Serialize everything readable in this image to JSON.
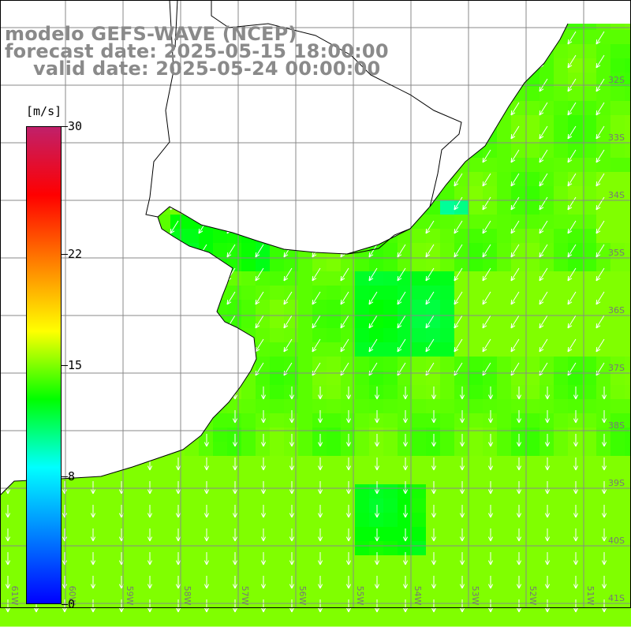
{
  "title": {
    "line1": "modelo GEFS-WAVE (NCEP)",
    "line2": "forecast date: 2025-05-15 18:00:00",
    "line3": "valid date: 2025-05-24 00:00:00"
  },
  "colorbar": {
    "unit": "[m/s]",
    "min": 0,
    "max": 30,
    "ticks": [
      {
        "value": 30,
        "label": "30"
      },
      {
        "value": 22,
        "label": "22"
      },
      {
        "value": 15,
        "label": "15"
      },
      {
        "value": 8,
        "label": "8"
      },
      {
        "value": 0,
        "label": "0"
      }
    ],
    "colors": [
      "#0000ff",
      "#0080ff",
      "#00ffff",
      "#00ff00",
      "#ffff00",
      "#ff8000",
      "#ff0000",
      "#c0206a"
    ]
  },
  "map": {
    "variable": "wind speed and direction",
    "land_color": "#ffffff",
    "lat_labels": [
      "32S",
      "33S",
      "34S",
      "35S",
      "36S",
      "37S",
      "38S",
      "39S",
      "40S",
      "41S"
    ],
    "lon_labels": [
      "61W",
      "60W",
      "59W",
      "58W",
      "57W",
      "56W",
      "55W",
      "54W",
      "53W",
      "52W",
      "51W"
    ]
  }
}
